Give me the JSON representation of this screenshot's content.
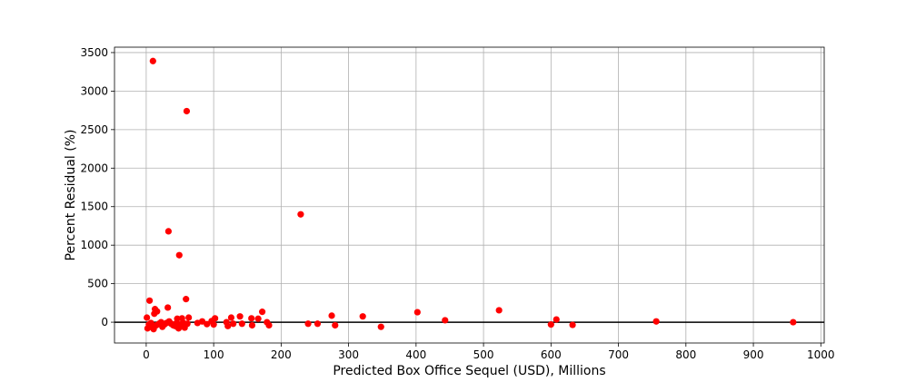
{
  "chart_data": {
    "type": "scatter",
    "title": "",
    "xlabel": "Predicted Box Office Sequel (USD), Millions",
    "ylabel": "Percent Residual (%)",
    "xlim": [
      -47,
      1005
    ],
    "ylim": [
      -270,
      3570
    ],
    "xticks": [
      0,
      100,
      200,
      300,
      400,
      500,
      600,
      700,
      800,
      900,
      1000
    ],
    "yticks": [
      0,
      500,
      1000,
      1500,
      2000,
      2500,
      3000,
      3500
    ],
    "xtick_labels": [
      "0",
      "100",
      "200",
      "300",
      "400",
      "500",
      "600",
      "700",
      "800",
      "900",
      "1000"
    ],
    "ytick_labels": [
      "0",
      "500",
      "1000",
      "1500",
      "2000",
      "2500",
      "3000",
      "3500"
    ],
    "grid": true,
    "zero_line": true,
    "marker_color": "#ff0000",
    "points": [
      {
        "x": 10,
        "y": 3390
      },
      {
        "x": 60,
        "y": 2740
      },
      {
        "x": 229,
        "y": 1400
      },
      {
        "x": 33,
        "y": 1180
      },
      {
        "x": 49,
        "y": 870
      },
      {
        "x": 5,
        "y": 280
      },
      {
        "x": 59,
        "y": 300
      },
      {
        "x": 32,
        "y": 190
      },
      {
        "x": 13,
        "y": 170
      },
      {
        "x": 16,
        "y": 140
      },
      {
        "x": 12,
        "y": 110
      },
      {
        "x": 523,
        "y": 155
      },
      {
        "x": 402,
        "y": 130
      },
      {
        "x": 172,
        "y": 135
      },
      {
        "x": 275,
        "y": 85
      },
      {
        "x": 321,
        "y": 75
      },
      {
        "x": 139,
        "y": 75
      },
      {
        "x": 126,
        "y": 60
      },
      {
        "x": 102,
        "y": 50
      },
      {
        "x": 156,
        "y": 50
      },
      {
        "x": 166,
        "y": 45
      },
      {
        "x": 63,
        "y": 60
      },
      {
        "x": 53,
        "y": 50
      },
      {
        "x": 46,
        "y": 45
      },
      {
        "x": 1,
        "y": 60
      },
      {
        "x": 443,
        "y": 25
      },
      {
        "x": 608,
        "y": 35
      },
      {
        "x": 756,
        "y": 10
      },
      {
        "x": 959,
        "y": 0
      },
      {
        "x": 83,
        "y": 10
      },
      {
        "x": 97,
        "y": 15
      },
      {
        "x": 119,
        "y": 0
      },
      {
        "x": 142,
        "y": -20
      },
      {
        "x": 179,
        "y": 0
      },
      {
        "x": 76,
        "y": -10
      },
      {
        "x": 90,
        "y": -25
      },
      {
        "x": 100,
        "y": -30
      },
      {
        "x": 121,
        "y": -50
      },
      {
        "x": 129,
        "y": -20
      },
      {
        "x": 157,
        "y": -40
      },
      {
        "x": 182,
        "y": -40
      },
      {
        "x": 240,
        "y": -20
      },
      {
        "x": 254,
        "y": -20
      },
      {
        "x": 280,
        "y": -40
      },
      {
        "x": 348,
        "y": -60
      },
      {
        "x": 600,
        "y": -30
      },
      {
        "x": 632,
        "y": -35
      },
      {
        "x": 2,
        "y": -80
      },
      {
        "x": 4,
        "y": -30
      },
      {
        "x": 7,
        "y": -10
      },
      {
        "x": 9,
        "y": -50
      },
      {
        "x": 11,
        "y": -90
      },
      {
        "x": 15,
        "y": -40
      },
      {
        "x": 19,
        "y": -20
      },
      {
        "x": 22,
        "y": 0
      },
      {
        "x": 24,
        "y": -60
      },
      {
        "x": 27,
        "y": -30
      },
      {
        "x": 30,
        "y": -10
      },
      {
        "x": 34,
        "y": 10
      },
      {
        "x": 37,
        "y": -20
      },
      {
        "x": 40,
        "y": -40
      },
      {
        "x": 43,
        "y": -50
      },
      {
        "x": 48,
        "y": -80
      },
      {
        "x": 51,
        "y": -30
      },
      {
        "x": 55,
        "y": -10
      },
      {
        "x": 57,
        "y": -70
      },
      {
        "x": 61,
        "y": -20
      },
      {
        "x": 45,
        "y": -10
      }
    ]
  }
}
